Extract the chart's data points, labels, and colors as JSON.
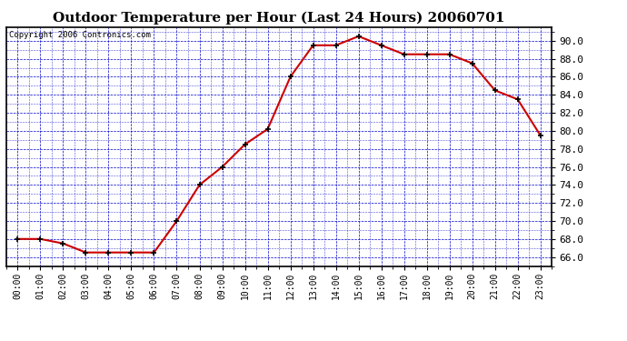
{
  "title": "Outdoor Temperature per Hour (Last 24 Hours) 20060701",
  "copyright": "Copyright 2006 Contronics.com",
  "hours": [
    "00:00",
    "01:00",
    "02:00",
    "03:00",
    "04:00",
    "05:00",
    "06:00",
    "07:00",
    "08:00",
    "09:00",
    "10:00",
    "11:00",
    "12:00",
    "13:00",
    "14:00",
    "15:00",
    "16:00",
    "17:00",
    "18:00",
    "19:00",
    "20:00",
    "21:00",
    "22:00",
    "23:00"
  ],
  "temps": [
    68.0,
    68.0,
    67.5,
    66.5,
    66.5,
    66.5,
    66.5,
    70.0,
    74.0,
    76.0,
    78.5,
    80.2,
    86.0,
    89.5,
    89.5,
    90.5,
    89.5,
    88.5,
    88.5,
    88.5,
    87.5,
    84.5,
    83.5,
    79.5
  ],
  "ylim": [
    65.0,
    91.5
  ],
  "yticks": [
    66.0,
    68.0,
    70.0,
    72.0,
    74.0,
    76.0,
    78.0,
    80.0,
    82.0,
    84.0,
    86.0,
    88.0,
    90.0
  ],
  "line_color": "#cc0000",
  "marker_color": "#000000",
  "bg_color": "#ffffff",
  "plot_bg_color": "#ffffff",
  "grid_color": "#0000cc",
  "title_fontsize": 11,
  "copyright_fontsize": 6.5,
  "tick_fontsize": 7,
  "ytick_fontsize": 8
}
